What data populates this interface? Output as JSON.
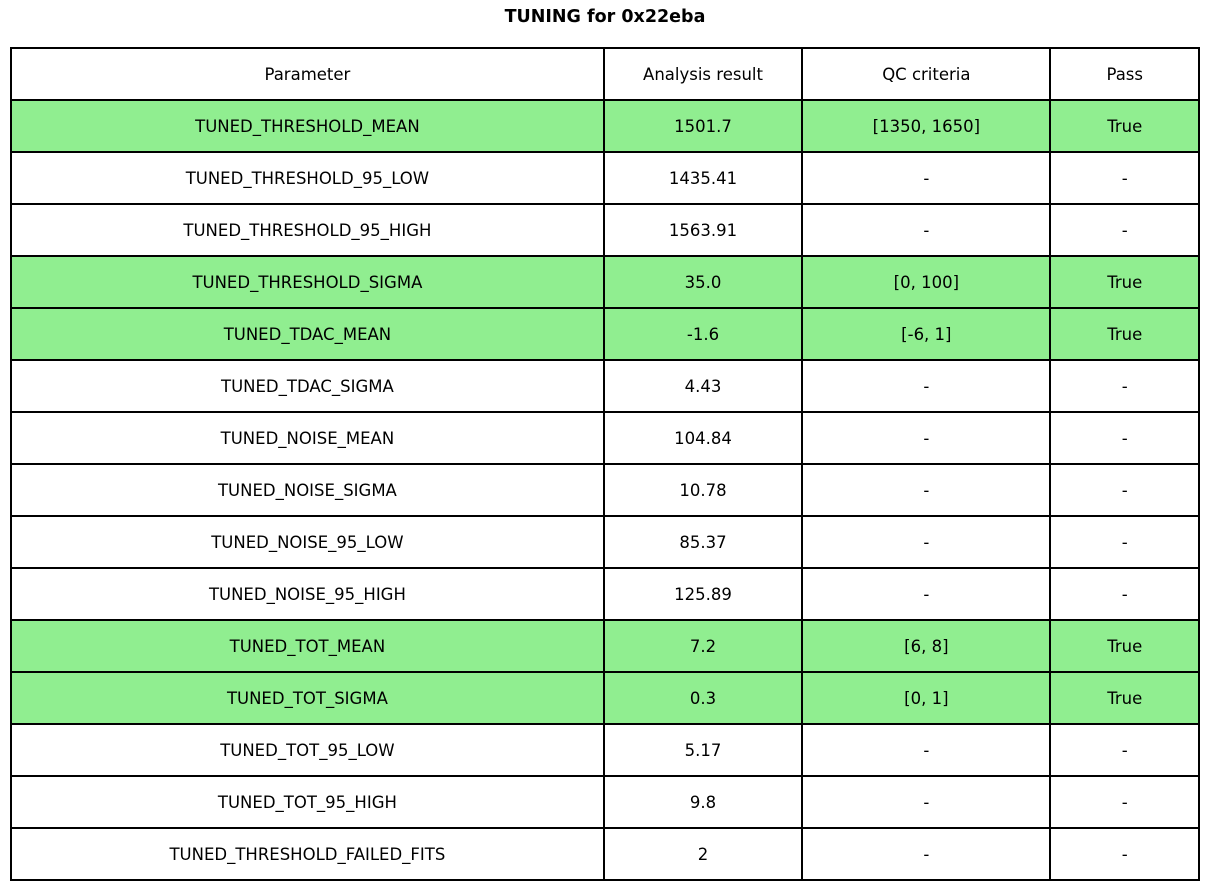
{
  "figure": {
    "title": "TUNING for 0x22eba"
  },
  "colors": {
    "background": "#FFFFFF",
    "text": "#000000",
    "border": "#000000",
    "pass_highlight": "#90EE90"
  },
  "chart_data": {
    "type": "table",
    "title": "TUNING for 0x22eba",
    "columns": [
      "Parameter",
      "Analysis result",
      "QC criteria",
      "Pass"
    ],
    "highlight_color": "#90EE90",
    "highlight_meaning": "row has QC criteria and Pass = True",
    "rows": [
      {
        "parameter": "TUNED_THRESHOLD_MEAN",
        "analysis_result": "1501.7",
        "qc_criteria": "[1350, 1650]",
        "pass": "True",
        "highlighted": true
      },
      {
        "parameter": "TUNED_THRESHOLD_95_LOW",
        "analysis_result": "1435.41",
        "qc_criteria": "-",
        "pass": "-",
        "highlighted": false
      },
      {
        "parameter": "TUNED_THRESHOLD_95_HIGH",
        "analysis_result": "1563.91",
        "qc_criteria": "-",
        "pass": "-",
        "highlighted": false
      },
      {
        "parameter": "TUNED_THRESHOLD_SIGMA",
        "analysis_result": "35.0",
        "qc_criteria": "[0, 100]",
        "pass": "True",
        "highlighted": true
      },
      {
        "parameter": "TUNED_TDAC_MEAN",
        "analysis_result": "-1.6",
        "qc_criteria": "[-6, 1]",
        "pass": "True",
        "highlighted": true
      },
      {
        "parameter": "TUNED_TDAC_SIGMA",
        "analysis_result": "4.43",
        "qc_criteria": "-",
        "pass": "-",
        "highlighted": false
      },
      {
        "parameter": "TUNED_NOISE_MEAN",
        "analysis_result": "104.84",
        "qc_criteria": "-",
        "pass": "-",
        "highlighted": false
      },
      {
        "parameter": "TUNED_NOISE_SIGMA",
        "analysis_result": "10.78",
        "qc_criteria": "-",
        "pass": "-",
        "highlighted": false
      },
      {
        "parameter": "TUNED_NOISE_95_LOW",
        "analysis_result": "85.37",
        "qc_criteria": "-",
        "pass": "-",
        "highlighted": false
      },
      {
        "parameter": "TUNED_NOISE_95_HIGH",
        "analysis_result": "125.89",
        "qc_criteria": "-",
        "pass": "-",
        "highlighted": false
      },
      {
        "parameter": "TUNED_TOT_MEAN",
        "analysis_result": "7.2",
        "qc_criteria": "[6, 8]",
        "pass": "True",
        "highlighted": true
      },
      {
        "parameter": "TUNED_TOT_SIGMA",
        "analysis_result": "0.3",
        "qc_criteria": "[0, 1]",
        "pass": "True",
        "highlighted": true
      },
      {
        "parameter": "TUNED_TOT_95_LOW",
        "analysis_result": "5.17",
        "qc_criteria": "-",
        "pass": "-",
        "highlighted": false
      },
      {
        "parameter": "TUNED_TOT_95_HIGH",
        "analysis_result": "9.8",
        "qc_criteria": "-",
        "pass": "-",
        "highlighted": false
      },
      {
        "parameter": "TUNED_THRESHOLD_FAILED_FITS",
        "analysis_result": "2",
        "qc_criteria": "-",
        "pass": "-",
        "highlighted": false
      }
    ]
  }
}
